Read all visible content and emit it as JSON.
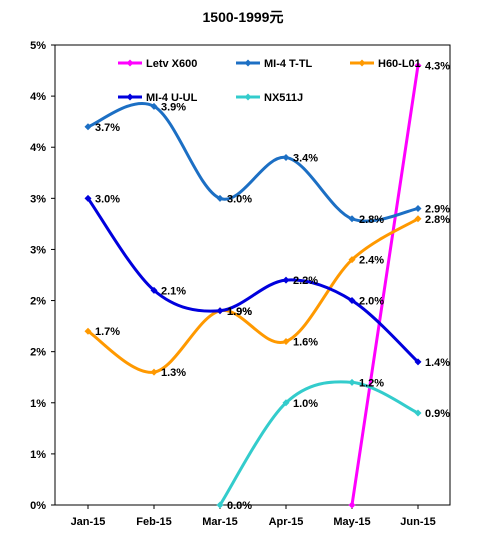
{
  "chart_data": {
    "type": "line",
    "title": "1500-1999元",
    "xlabel": "",
    "ylabel": "",
    "categories": [
      "Jan-15",
      "Feb-15",
      "Mar-15",
      "Apr-15",
      "May-15",
      "Jun-15"
    ],
    "y_ticks": [
      "0%",
      "1%",
      "1%",
      "2%",
      "2%",
      "3%",
      "3%",
      "4%",
      "4%",
      "5%"
    ],
    "ylim": [
      0,
      4.5
    ],
    "grid": false,
    "legend_position": "top",
    "series": [
      {
        "name": "Letv X600",
        "color": "#ff00ff",
        "values": [
          null,
          null,
          null,
          null,
          0.0,
          4.3
        ],
        "labels": [
          null,
          null,
          null,
          null,
          null,
          "4.3%"
        ]
      },
      {
        "name": "MI-4 T-TL",
        "color": "#1c6fc4",
        "values": [
          3.7,
          3.9,
          3.0,
          3.4,
          2.8,
          2.9
        ],
        "labels": [
          "3.7%",
          "3.9%",
          "3.0%",
          "3.4%",
          "2.8%",
          "2.9%"
        ]
      },
      {
        "name": "H60-L01",
        "color": "#ff9900",
        "values": [
          1.7,
          1.3,
          1.9,
          1.6,
          2.4,
          2.8
        ],
        "labels": [
          "1.7%",
          "1.3%",
          "1.9%",
          "1.6%",
          "2.4%",
          "2.8%"
        ]
      },
      {
        "name": "MI-4 U-UL",
        "color": "#0000dd",
        "values": [
          3.0,
          2.1,
          1.9,
          2.2,
          2.0,
          1.4
        ],
        "labels": [
          "3.0%",
          "2.1%",
          "1.9%",
          "2.2%",
          "2.0%",
          "1.4%"
        ]
      },
      {
        "name": "NX511J",
        "color": "#33cccc",
        "values": [
          null,
          null,
          0.0,
          1.0,
          1.2,
          0.9
        ],
        "labels": [
          null,
          null,
          "0.0%",
          "1.0%",
          "1.2%",
          "0.9%"
        ]
      }
    ]
  }
}
